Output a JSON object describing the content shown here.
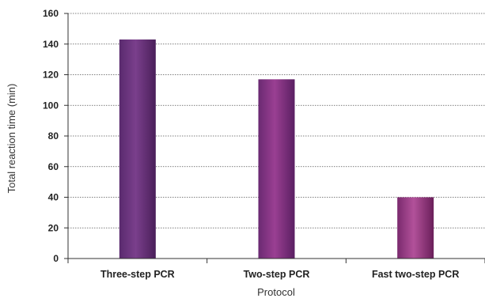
{
  "chart_data": {
    "type": "bar",
    "categories": [
      "Three-step PCR",
      "Two-step PCR",
      "Fast two-step PCR"
    ],
    "values": [
      143,
      117,
      40
    ],
    "xlabel": "Protocol",
    "ylabel": "Total reaction time (min)",
    "ylim": [
      0,
      160
    ],
    "yticks": [
      0,
      20,
      40,
      60,
      80,
      100,
      120,
      140,
      160
    ],
    "grid": true,
    "legend": "none",
    "colors": {
      "bars": [
        [
          "#5a2a6e",
          "#7a3f8c",
          "#4a1f5a"
        ],
        [
          "#6a2a72",
          "#9a3f92",
          "#5a1f62"
        ],
        [
          "#7a2a6e",
          "#b2519a",
          "#6a1f5a"
        ]
      ],
      "grid": "#555555",
      "axis": "#333333"
    }
  }
}
